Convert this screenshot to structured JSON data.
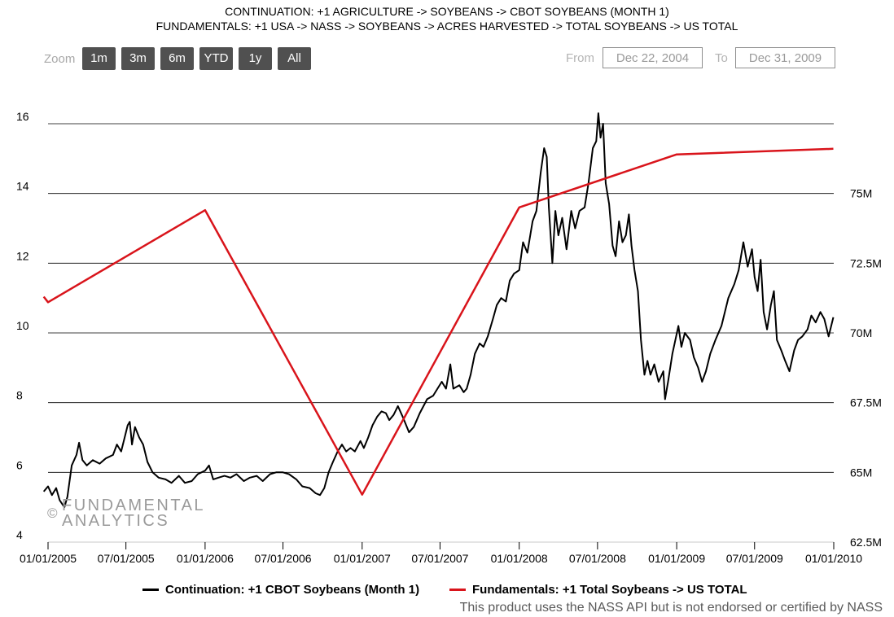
{
  "header": {
    "line1": "CONTINUATION: +1 AGRICULTURE -> SOYBEANS -> CBOT SOYBEANS (MONTH 1)",
    "line2": "FUNDAMENTALS: +1 USA -> NASS -> SOYBEANS -> ACRES HARVESTED -> TOTAL SOYBEANS -> US TOTAL"
  },
  "zoom": {
    "label": "Zoom",
    "buttons": [
      "1m",
      "3m",
      "6m",
      "YTD",
      "1y",
      "All"
    ]
  },
  "range": {
    "from_label": "From",
    "from_value": "Dec 22, 2004",
    "to_label": "To",
    "to_value": "Dec 31, 2009"
  },
  "watermark": {
    "symbol": "©",
    "line1": "FUNDAMENTAL",
    "line2": "ANALYTICS"
  },
  "legend": {
    "continuation": "Continuation: +1 CBOT Soybeans (Month 1)",
    "fundamentals": "Fundamentals: +1 Total Soybeans -> US TOTAL"
  },
  "footer": "This product uses the NASS API but is not endorsed or certified by NASS",
  "colors": {
    "price_series": "#000000",
    "acres_series": "#d9141b",
    "grid": "#000000"
  },
  "chart_data": {
    "type": "line",
    "grid": true,
    "x_range": [
      "2005-01-01",
      "2010-01-01"
    ],
    "x_ticks": [
      "01/01/2005",
      "07/01/2005",
      "01/01/2006",
      "07/01/2006",
      "01/01/2007",
      "07/01/2007",
      "01/01/2008",
      "07/01/2008",
      "01/01/2009",
      "07/01/2009",
      "01/01/2010"
    ],
    "y_left": {
      "ylim": [
        4,
        16
      ],
      "ticks": [
        "4",
        "6",
        "8",
        "10",
        "12",
        "14",
        "16"
      ]
    },
    "y_right": {
      "ylim": [
        62500000,
        77500000
      ],
      "ticks": [
        "62.5M",
        "65M",
        "67.5M",
        "70M",
        "72.5M",
        "75M"
      ]
    },
    "series": [
      {
        "name": "Continuation: +1 CBOT Soybeans (Month 1)",
        "axis": "left",
        "points": [
          [
            "2004-12-22",
            5.45
          ],
          [
            "2005-01-01",
            5.6
          ],
          [
            "2005-01-10",
            5.35
          ],
          [
            "2005-01-20",
            5.55
          ],
          [
            "2005-01-28",
            5.2
          ],
          [
            "2005-02-08",
            5.0
          ],
          [
            "2005-02-15",
            5.3
          ],
          [
            "2005-02-25",
            6.2
          ],
          [
            "2005-03-08",
            6.5
          ],
          [
            "2005-03-14",
            6.85
          ],
          [
            "2005-03-22",
            6.35
          ],
          [
            "2005-04-01",
            6.2
          ],
          [
            "2005-04-15",
            6.35
          ],
          [
            "2005-05-01",
            6.25
          ],
          [
            "2005-05-15",
            6.4
          ],
          [
            "2005-06-01",
            6.5
          ],
          [
            "2005-06-10",
            6.8
          ],
          [
            "2005-06-20",
            6.6
          ],
          [
            "2005-06-28",
            7.0
          ],
          [
            "2005-07-05",
            7.35
          ],
          [
            "2005-07-10",
            7.45
          ],
          [
            "2005-07-15",
            6.8
          ],
          [
            "2005-07-22",
            7.3
          ],
          [
            "2005-08-01",
            7.0
          ],
          [
            "2005-08-10",
            6.8
          ],
          [
            "2005-08-20",
            6.3
          ],
          [
            "2005-09-01",
            6.0
          ],
          [
            "2005-09-15",
            5.85
          ],
          [
            "2005-10-01",
            5.8
          ],
          [
            "2005-10-15",
            5.7
          ],
          [
            "2005-11-01",
            5.9
          ],
          [
            "2005-11-15",
            5.7
          ],
          [
            "2005-12-01",
            5.75
          ],
          [
            "2005-12-15",
            5.95
          ],
          [
            "2006-01-01",
            6.05
          ],
          [
            "2006-01-10",
            6.2
          ],
          [
            "2006-01-20",
            5.8
          ],
          [
            "2006-02-01",
            5.85
          ],
          [
            "2006-02-15",
            5.9
          ],
          [
            "2006-03-01",
            5.85
          ],
          [
            "2006-03-15",
            5.95
          ],
          [
            "2006-04-01",
            5.75
          ],
          [
            "2006-04-15",
            5.85
          ],
          [
            "2006-05-01",
            5.9
          ],
          [
            "2006-05-15",
            5.75
          ],
          [
            "2006-06-01",
            5.95
          ],
          [
            "2006-06-15",
            6.0
          ],
          [
            "2006-07-01",
            6.0
          ],
          [
            "2006-07-15",
            5.95
          ],
          [
            "2006-08-01",
            5.8
          ],
          [
            "2006-08-15",
            5.6
          ],
          [
            "2006-09-01",
            5.55
          ],
          [
            "2006-09-15",
            5.4
          ],
          [
            "2006-09-25",
            5.35
          ],
          [
            "2006-10-05",
            5.55
          ],
          [
            "2006-10-15",
            6.0
          ],
          [
            "2006-10-25",
            6.3
          ],
          [
            "2006-11-05",
            6.6
          ],
          [
            "2006-11-15",
            6.8
          ],
          [
            "2006-11-25",
            6.6
          ],
          [
            "2006-12-05",
            6.7
          ],
          [
            "2006-12-15",
            6.6
          ],
          [
            "2006-12-28",
            6.9
          ],
          [
            "2007-01-05",
            6.7
          ],
          [
            "2007-01-15",
            7.0
          ],
          [
            "2007-01-25",
            7.35
          ],
          [
            "2007-02-05",
            7.6
          ],
          [
            "2007-02-15",
            7.75
          ],
          [
            "2007-02-25",
            7.7
          ],
          [
            "2007-03-05",
            7.5
          ],
          [
            "2007-03-15",
            7.65
          ],
          [
            "2007-03-25",
            7.9
          ],
          [
            "2007-04-05",
            7.6
          ],
          [
            "2007-04-20",
            7.15
          ],
          [
            "2007-05-01",
            7.3
          ],
          [
            "2007-05-15",
            7.7
          ],
          [
            "2007-06-01",
            8.1
          ],
          [
            "2007-06-15",
            8.2
          ],
          [
            "2007-06-25",
            8.4
          ],
          [
            "2007-07-05",
            8.6
          ],
          [
            "2007-07-15",
            8.4
          ],
          [
            "2007-07-25",
            9.1
          ],
          [
            "2007-08-01",
            8.4
          ],
          [
            "2007-08-15",
            8.5
          ],
          [
            "2007-08-25",
            8.3
          ],
          [
            "2007-09-01",
            8.4
          ],
          [
            "2007-09-10",
            8.8
          ],
          [
            "2007-09-20",
            9.4
          ],
          [
            "2007-10-01",
            9.7
          ],
          [
            "2007-10-10",
            9.6
          ],
          [
            "2007-10-20",
            9.9
          ],
          [
            "2007-11-01",
            10.4
          ],
          [
            "2007-11-10",
            10.8
          ],
          [
            "2007-11-20",
            11.0
          ],
          [
            "2007-12-01",
            10.9
          ],
          [
            "2007-12-10",
            11.5
          ],
          [
            "2007-12-20",
            11.7
          ],
          [
            "2008-01-01",
            11.8
          ],
          [
            "2008-01-10",
            12.6
          ],
          [
            "2008-01-20",
            12.3
          ],
          [
            "2008-02-01",
            13.2
          ],
          [
            "2008-02-10",
            13.5
          ],
          [
            "2008-02-20",
            14.6
          ],
          [
            "2008-02-28",
            15.3
          ],
          [
            "2008-03-05",
            15.05
          ],
          [
            "2008-03-10",
            13.6
          ],
          [
            "2008-03-18",
            12.0
          ],
          [
            "2008-03-25",
            13.5
          ],
          [
            "2008-04-01",
            12.8
          ],
          [
            "2008-04-10",
            13.3
          ],
          [
            "2008-04-20",
            12.4
          ],
          [
            "2008-05-01",
            13.5
          ],
          [
            "2008-05-10",
            13.0
          ],
          [
            "2008-05-20",
            13.5
          ],
          [
            "2008-06-01",
            13.6
          ],
          [
            "2008-06-10",
            14.3
          ],
          [
            "2008-06-20",
            15.3
          ],
          [
            "2008-06-28",
            15.5
          ],
          [
            "2008-07-03",
            16.3
          ],
          [
            "2008-07-08",
            15.6
          ],
          [
            "2008-07-14",
            16.0
          ],
          [
            "2008-07-20",
            14.3
          ],
          [
            "2008-07-28",
            13.7
          ],
          [
            "2008-08-05",
            12.5
          ],
          [
            "2008-08-12",
            12.2
          ],
          [
            "2008-08-20",
            13.2
          ],
          [
            "2008-08-28",
            12.6
          ],
          [
            "2008-09-05",
            12.8
          ],
          [
            "2008-09-12",
            13.4
          ],
          [
            "2008-09-18",
            12.5
          ],
          [
            "2008-09-25",
            11.8
          ],
          [
            "2008-10-03",
            11.2
          ],
          [
            "2008-10-10",
            9.8
          ],
          [
            "2008-10-18",
            8.8
          ],
          [
            "2008-10-25",
            9.2
          ],
          [
            "2008-11-01",
            8.8
          ],
          [
            "2008-11-10",
            9.1
          ],
          [
            "2008-11-20",
            8.6
          ],
          [
            "2008-12-01",
            8.9
          ],
          [
            "2008-12-05",
            8.1
          ],
          [
            "2008-12-12",
            8.6
          ],
          [
            "2008-12-22",
            9.4
          ],
          [
            "2009-01-05",
            10.2
          ],
          [
            "2009-01-12",
            9.6
          ],
          [
            "2009-01-20",
            10.0
          ],
          [
            "2009-02-01",
            9.8
          ],
          [
            "2009-02-10",
            9.3
          ],
          [
            "2009-02-20",
            9.0
          ],
          [
            "2009-03-01",
            8.6
          ],
          [
            "2009-03-10",
            8.9
          ],
          [
            "2009-03-20",
            9.4
          ],
          [
            "2009-04-01",
            9.8
          ],
          [
            "2009-04-15",
            10.2
          ],
          [
            "2009-05-01",
            11.0
          ],
          [
            "2009-05-15",
            11.4
          ],
          [
            "2009-05-25",
            11.8
          ],
          [
            "2009-06-05",
            12.6
          ],
          [
            "2009-06-15",
            11.9
          ],
          [
            "2009-06-25",
            12.4
          ],
          [
            "2009-07-01",
            11.6
          ],
          [
            "2009-07-08",
            11.2
          ],
          [
            "2009-07-15",
            12.1
          ],
          [
            "2009-07-22",
            10.6
          ],
          [
            "2009-07-30",
            10.1
          ],
          [
            "2009-08-08",
            10.8
          ],
          [
            "2009-08-15",
            11.2
          ],
          [
            "2009-08-22",
            9.8
          ],
          [
            "2009-09-01",
            9.5
          ],
          [
            "2009-09-10",
            9.2
          ],
          [
            "2009-09-20",
            8.9
          ],
          [
            "2009-10-01",
            9.5
          ],
          [
            "2009-10-10",
            9.8
          ],
          [
            "2009-10-20",
            9.9
          ],
          [
            "2009-11-01",
            10.1
          ],
          [
            "2009-11-10",
            10.5
          ],
          [
            "2009-11-20",
            10.3
          ],
          [
            "2009-12-01",
            10.6
          ],
          [
            "2009-12-10",
            10.4
          ],
          [
            "2009-12-20",
            9.9
          ],
          [
            "2009-12-31",
            10.45
          ]
        ]
      },
      {
        "name": "Fundamentals: +1 Total Soybeans -> US TOTAL",
        "axis": "right",
        "points": [
          [
            "2004-12-22",
            71.3
          ],
          [
            "2005-01-01",
            71.1
          ],
          [
            "2006-01-01",
            74.4
          ],
          [
            "2007-01-01",
            64.2
          ],
          [
            "2008-01-01",
            74.5
          ],
          [
            "2009-01-01",
            76.4
          ],
          [
            "2009-12-31",
            76.6
          ]
        ]
      }
    ]
  }
}
